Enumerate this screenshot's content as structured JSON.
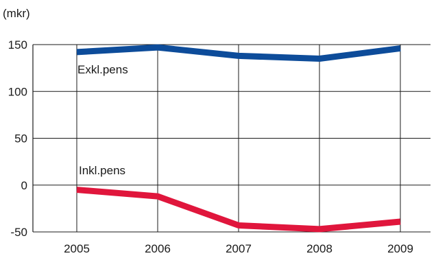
{
  "chart_data": {
    "type": "line",
    "unit": "(mkr)",
    "categories": [
      "2005",
      "2006",
      "2007",
      "2008",
      "2009"
    ],
    "ylim": [
      -50,
      150
    ],
    "yticks": [
      150,
      100,
      50,
      0,
      -50
    ],
    "grid": {
      "horizontal": true,
      "vertical": true
    },
    "series": [
      {
        "name": "Exkl.pens",
        "color": "#0d4c9a",
        "values": [
          142,
          147,
          138,
          135,
          146
        ]
      },
      {
        "name": "Inkl.pens",
        "color": "#e0163c",
        "values": [
          -5,
          -12,
          -43,
          -47,
          -39
        ]
      }
    ]
  }
}
